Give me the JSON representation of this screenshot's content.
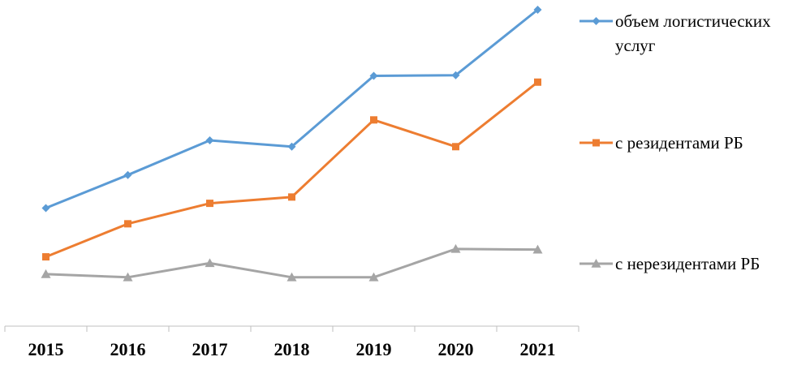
{
  "chart_data": {
    "type": "line",
    "categories": [
      "2015",
      "2016",
      "2017",
      "2018",
      "2019",
      "2020",
      "2021"
    ],
    "ylim": [
      0,
      100
    ],
    "grid": false,
    "legend_position": "right",
    "series": [
      {
        "name": "объем логистических услуг",
        "name_lines": [
          "объем логистических",
          "услуг"
        ],
        "color": "#5B9BD5",
        "marker": "diamond",
        "values": [
          37,
          47.5,
          58.5,
          56.5,
          79,
          79.2,
          100
        ]
      },
      {
        "name": "с резидентами РБ",
        "name_lines": [
          "с резидентами РБ"
        ],
        "color": "#ED7D31",
        "marker": "square",
        "values": [
          21.5,
          32,
          38.5,
          40.5,
          65,
          56.5,
          77
        ]
      },
      {
        "name": "с нерезидентами РБ",
        "name_lines": [
          "с нерезидентами РБ"
        ],
        "color": "#A5A5A5",
        "marker": "triangle",
        "values": [
          16,
          15,
          19.5,
          15,
          15,
          24,
          23.8
        ]
      }
    ]
  }
}
